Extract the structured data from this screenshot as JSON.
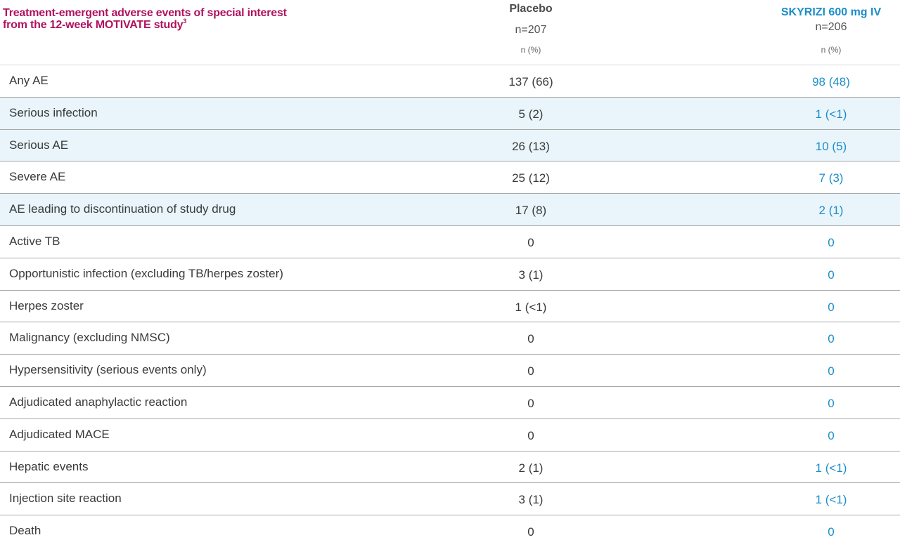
{
  "title": {
    "text": "Treatment-emergent adverse events of special interest from the 12-week MOTIVATE study",
    "superscript": "3"
  },
  "columns": {
    "placebo": {
      "name": "Placebo",
      "n": "n=207",
      "unit": "n (%)"
    },
    "skyrizi": {
      "name": "SKYRIZI 600 mg IV",
      "n": "n=206",
      "unit": "n (%)"
    }
  },
  "colors": {
    "title": "#b0125f",
    "skyrizi": "#1d8ec8",
    "shade": "#e9f5fb"
  },
  "rows": [
    {
      "label": "Any AE",
      "placebo": "137 (66)",
      "skyrizi": "98 (48)",
      "shaded": false
    },
    {
      "label": "Serious infection",
      "placebo": "5 (2)",
      "skyrizi": "1 (<1)",
      "shaded": true
    },
    {
      "label": "Serious AE",
      "placebo": "26 (13)",
      "skyrizi": "10 (5)",
      "shaded": true
    },
    {
      "label": "Severe AE",
      "placebo": "25 (12)",
      "skyrizi": "7 (3)",
      "shaded": false
    },
    {
      "label": "AE leading to discontinuation of study drug",
      "placebo": "17 (8)",
      "skyrizi": "2 (1)",
      "shaded": true
    },
    {
      "label": "Active TB",
      "placebo": "0",
      "skyrizi": "0",
      "shaded": false
    },
    {
      "label": "Opportunistic infection (excluding TB/herpes zoster)",
      "placebo": "3 (1)",
      "skyrizi": "0",
      "shaded": false
    },
    {
      "label": "Herpes zoster",
      "placebo": "1 (<1)",
      "skyrizi": "0",
      "shaded": false
    },
    {
      "label": "Malignancy (excluding NMSC)",
      "placebo": "0",
      "skyrizi": "0",
      "shaded": false
    },
    {
      "label": "Hypersensitivity (serious events only)",
      "placebo": "0",
      "skyrizi": "0",
      "shaded": false
    },
    {
      "label": "Adjudicated anaphylactic reaction",
      "placebo": "0",
      "skyrizi": "0",
      "shaded": false
    },
    {
      "label": "Adjudicated MACE",
      "placebo": "0",
      "skyrizi": "0",
      "shaded": false
    },
    {
      "label": "Hepatic events",
      "placebo": "2 (1)",
      "skyrizi": "1 (<1)",
      "shaded": false
    },
    {
      "label": "Injection site reaction",
      "placebo": "3 (1)",
      "skyrizi": "1 (<1)",
      "shaded": false
    },
    {
      "label": "Death",
      "placebo": "0",
      "skyrizi": "0",
      "shaded": false
    }
  ]
}
